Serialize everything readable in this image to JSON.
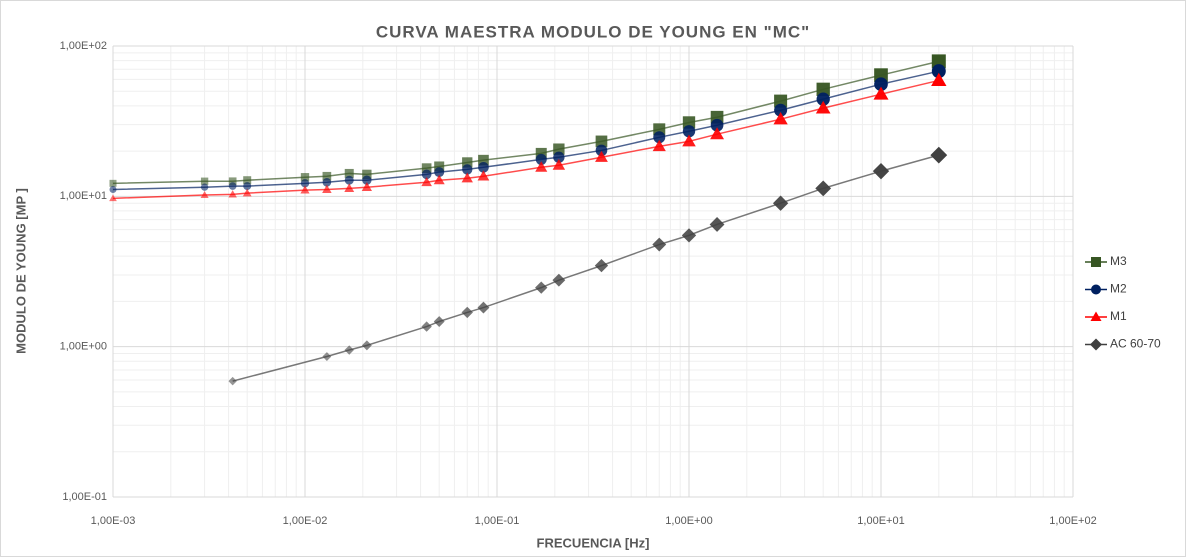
{
  "chart_data": {
    "type": "line",
    "title": "CURVA MAESTRA MODULO DE YOUNG EN \"MC\"",
    "x_label": "FRECUENCIA [Hz]",
    "y_label": "MODULO DE YOUNG  [MP ]",
    "xlog": true,
    "ylog": true,
    "grid": true,
    "legend": "right",
    "xlim": [
      0.001,
      100
    ],
    "ylim": [
      0.1,
      100
    ],
    "xticks": [
      {
        "value": 0.001,
        "label": "1,00E-03"
      },
      {
        "value": 0.01,
        "label": "1,00E-02"
      },
      {
        "value": 0.1,
        "label": "1,00E-01"
      },
      {
        "value": 1,
        "label": "1,00E+00"
      },
      {
        "value": 10,
        "label": "1,00E+01"
      },
      {
        "value": 100,
        "label": "1,00E+02"
      }
    ],
    "yticks": [
      {
        "value": 0.1,
        "label": "1,00E-01"
      },
      {
        "value": 1,
        "label": "1,00E+00"
      },
      {
        "value": 10,
        "label": "1,00E+01"
      },
      {
        "value": 100,
        "label": "1,00E+02"
      }
    ],
    "series": [
      {
        "name": "M3",
        "color": "#375623",
        "marker": "square",
        "x": [
          0.001,
          0.003,
          0.0042,
          0.005,
          0.01,
          0.013,
          0.017,
          0.021,
          0.043,
          0.05,
          0.07,
          0.085,
          0.17,
          0.21,
          0.35,
          0.7,
          1,
          1.4,
          3,
          5,
          10,
          20
        ],
        "values": [
          12.2,
          12.6,
          12.6,
          12.8,
          13.4,
          13.6,
          14.2,
          14.0,
          15.4,
          15.8,
          16.8,
          17.4,
          19.3,
          20.6,
          23.2,
          27.9,
          31,
          33.6,
          43,
          51.5,
          64,
          79
        ]
      },
      {
        "name": "M2",
        "color": "#002060",
        "marker": "circle",
        "x": [
          0.001,
          0.003,
          0.0042,
          0.005,
          0.01,
          0.013,
          0.017,
          0.021,
          0.043,
          0.05,
          0.07,
          0.085,
          0.17,
          0.21,
          0.35,
          0.7,
          1,
          1.4,
          3,
          5,
          10,
          20
        ],
        "values": [
          11.1,
          11.5,
          11.7,
          11.7,
          12.2,
          12.4,
          12.8,
          12.8,
          14.0,
          14.5,
          15.1,
          15.6,
          17.6,
          18.2,
          20.2,
          24.7,
          27.1,
          29.7,
          37.4,
          44.3,
          55.7,
          68
        ]
      },
      {
        "name": "M1",
        "color": "#ff0000",
        "marker": "triangle",
        "x": [
          0.001,
          0.003,
          0.0042,
          0.005,
          0.01,
          0.013,
          0.017,
          0.021,
          0.043,
          0.05,
          0.07,
          0.085,
          0.17,
          0.21,
          0.35,
          0.7,
          1,
          1.4,
          3,
          5,
          10,
          20
        ],
        "values": [
          9.7,
          10.2,
          10.3,
          10.5,
          11.0,
          11.1,
          11.3,
          11.5,
          12.4,
          12.8,
          13.2,
          13.6,
          15.6,
          16.1,
          18.2,
          21.5,
          23.2,
          25.9,
          32.6,
          38.6,
          47.8,
          59
        ]
      },
      {
        "name": "AC 60-70",
        "color": "#404040",
        "marker": "diamond",
        "x": [
          0.0042,
          0.013,
          0.017,
          0.021,
          0.043,
          0.05,
          0.07,
          0.085,
          0.17,
          0.21,
          0.35,
          0.7,
          1,
          1.4,
          3,
          5,
          10,
          20
        ],
        "values": [
          0.59,
          0.86,
          0.95,
          1.02,
          1.36,
          1.47,
          1.69,
          1.82,
          2.47,
          2.77,
          3.46,
          4.78,
          5.5,
          6.5,
          9.0,
          11.3,
          14.7,
          18.8
        ]
      }
    ]
  }
}
